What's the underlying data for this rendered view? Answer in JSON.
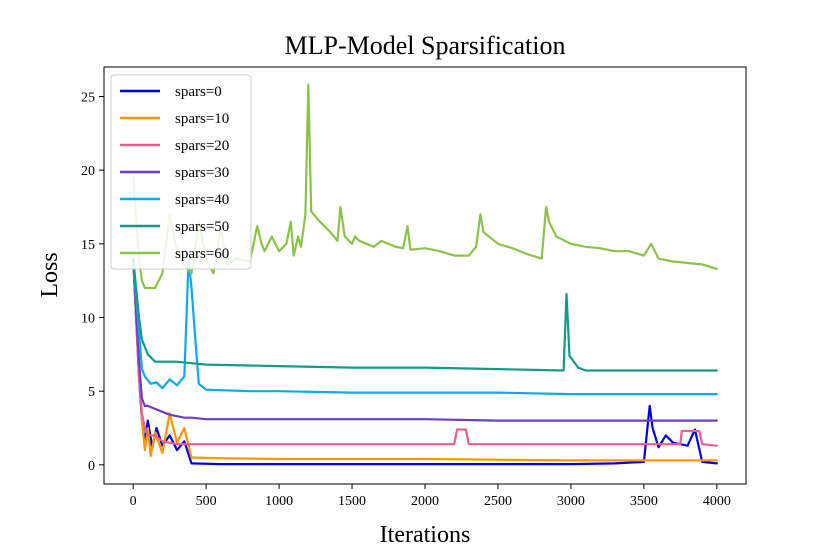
{
  "chart_data": {
    "type": "line",
    "title": "MLP-Model Sparsification",
    "xlabel": "Iterations",
    "ylabel": "Loss",
    "xlim": [
      -200,
      4200
    ],
    "ylim": [
      -1.3,
      27
    ],
    "xticks": [
      0,
      500,
      1000,
      1500,
      2000,
      2500,
      3000,
      3500,
      4000
    ],
    "yticks": [
      0,
      5,
      10,
      15,
      20,
      25
    ],
    "grid": false,
    "legend_position": "upper-left",
    "series": [
      {
        "name": "spars=0",
        "color": "#0000e6",
        "x": [
          0,
          40,
          60,
          80,
          100,
          130,
          160,
          200,
          250,
          300,
          350,
          400,
          600,
          1000,
          1500,
          2000,
          2500,
          3000,
          3300,
          3500,
          3540,
          3560,
          3600,
          3650,
          3700,
          3750,
          3800,
          3850,
          3900,
          4000
        ],
        "y": [
          14,
          6,
          3,
          1.5,
          3,
          1.2,
          2.5,
          1.3,
          2,
          1,
          1.6,
          0.1,
          0.05,
          0.05,
          0.05,
          0.05,
          0.05,
          0.05,
          0.1,
          0.2,
          4,
          2.5,
          1.2,
          2,
          1.5,
          1.4,
          1.3,
          2.4,
          0.2,
          0.1
        ]
      },
      {
        "name": "spars=10",
        "color": "#ff9500",
        "x": [
          0,
          40,
          60,
          80,
          100,
          120,
          150,
          200,
          250,
          300,
          350,
          400,
          600,
          1000,
          1500,
          2000,
          2500,
          3000,
          3500,
          4000
        ],
        "y": [
          14,
          7,
          3,
          1,
          2.5,
          0.6,
          2.2,
          0.8,
          3.5,
          1.5,
          2.5,
          0.5,
          0.45,
          0.4,
          0.4,
          0.4,
          0.35,
          0.3,
          0.3,
          0.3
        ]
      },
      {
        "name": "spars=20",
        "color": "#e8608c",
        "x": [
          0,
          40,
          60,
          80,
          100,
          150,
          200,
          300,
          400,
          500,
          1000,
          1500,
          2000,
          2200,
          2220,
          2280,
          2300,
          2500,
          3000,
          3500,
          3750,
          3760,
          3880,
          3900,
          4000
        ],
        "y": [
          14,
          6,
          3.5,
          2.5,
          2,
          2,
          1.6,
          1.4,
          1.4,
          1.4,
          1.4,
          1.4,
          1.4,
          1.4,
          2.4,
          2.4,
          1.4,
          1.4,
          1.4,
          1.4,
          1.4,
          2.3,
          2.3,
          1.4,
          1.3
        ]
      },
      {
        "name": "spars=30",
        "color": "#6a3fc2",
        "x": [
          0,
          40,
          60,
          80,
          100,
          150,
          200,
          250,
          300,
          350,
          400,
          500,
          1000,
          1500,
          2000,
          2500,
          3000,
          3500,
          4000
        ],
        "y": [
          14,
          7,
          4.5,
          4,
          4,
          3.8,
          3.6,
          3.4,
          3.3,
          3.2,
          3.2,
          3.1,
          3.1,
          3.1,
          3.1,
          3.0,
          3.0,
          3.0,
          3.0
        ]
      },
      {
        "name": "spars=40",
        "color": "#10a8ec",
        "x": [
          0,
          40,
          60,
          80,
          120,
          160,
          200,
          250,
          300,
          350,
          380,
          400,
          430,
          450,
          500,
          800,
          1000,
          1500,
          2000,
          2500,
          3000,
          3500,
          4000
        ],
        "y": [
          14,
          9,
          6.5,
          6,
          5.5,
          5.6,
          5.2,
          5.8,
          5.4,
          6,
          14,
          12,
          8,
          5.5,
          5.1,
          5,
          5,
          4.9,
          4.9,
          4.9,
          4.8,
          4.8,
          4.8
        ]
      },
      {
        "name": "spars=50",
        "color": "#159a85",
        "x": [
          0,
          40,
          60,
          80,
          100,
          150,
          200,
          300,
          400,
          500,
          1000,
          1500,
          2000,
          2500,
          2950,
          2970,
          2990,
          3050,
          3100,
          3500,
          4000
        ],
        "y": [
          14,
          10,
          8.5,
          8,
          7.5,
          7,
          7,
          7,
          6.9,
          6.8,
          6.7,
          6.6,
          6.6,
          6.5,
          6.4,
          11.6,
          7.4,
          6.6,
          6.4,
          6.4,
          6.4
        ]
      },
      {
        "name": "spars=60",
        "color": "#8bc34a",
        "x": [
          0,
          40,
          60,
          80,
          100,
          150,
          200,
          250,
          300,
          350,
          400,
          450,
          500,
          550,
          600,
          650,
          700,
          800,
          850,
          880,
          900,
          950,
          1000,
          1050,
          1080,
          1100,
          1130,
          1150,
          1180,
          1200,
          1220,
          1280,
          1350,
          1400,
          1420,
          1450,
          1500,
          1520,
          1550,
          1600,
          1650,
          1700,
          1800,
          1850,
          1880,
          1900,
          2000,
          2100,
          2200,
          2300,
          2350,
          2380,
          2400,
          2500,
          2600,
          2700,
          2800,
          2830,
          2850,
          2900,
          3000,
          3100,
          3200,
          3300,
          3400,
          3500,
          3550,
          3600,
          3700,
          3800,
          3900,
          4000
        ],
        "y": [
          19.5,
          14,
          12.5,
          12,
          12,
          12,
          13,
          17,
          14.5,
          13.5,
          13,
          16.5,
          14,
          13,
          16,
          13.5,
          14,
          13.8,
          16.2,
          15,
          14.5,
          15.5,
          14.5,
          15,
          16.5,
          14.2,
          15.5,
          14.8,
          17,
          25.8,
          17.2,
          16.5,
          15.8,
          15.2,
          17.5,
          15.5,
          15,
          15.5,
          15.2,
          15,
          14.8,
          15.2,
          14.8,
          14.7,
          16.2,
          14.6,
          14.7,
          14.5,
          14.2,
          14.2,
          14.8,
          17,
          15.8,
          15,
          14.7,
          14.3,
          14,
          17.5,
          16.5,
          15.5,
          15,
          14.8,
          14.7,
          14.5,
          14.5,
          14.2,
          15,
          14,
          13.8,
          13.7,
          13.6,
          13.3
        ]
      }
    ]
  }
}
